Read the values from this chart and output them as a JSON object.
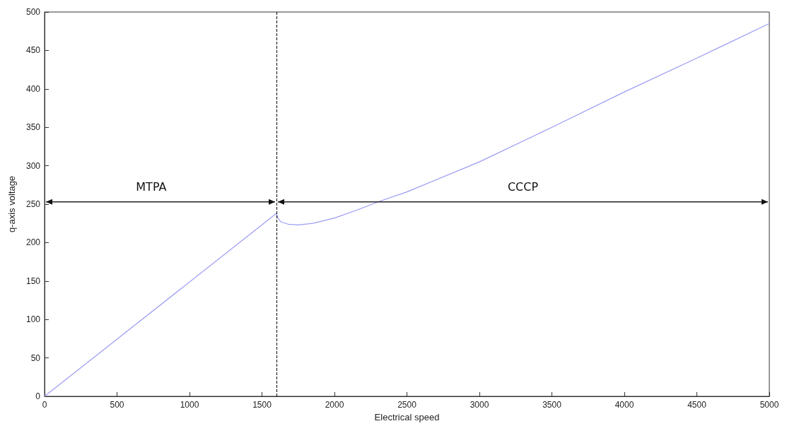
{
  "chart_data": {
    "type": "line",
    "xlabel": "Electrical speed",
    "ylabel": "q-axis voltage",
    "x": [
      0,
      1600,
      1610,
      1630,
      1680,
      1750,
      1850,
      2000,
      2150,
      2300,
      2500,
      3000,
      3500,
      4000,
      4500,
      5000
    ],
    "series": [
      {
        "color": "#9c9cf5",
        "values": [
          0,
          238,
          232,
          227,
          224,
          223,
          225,
          232,
          242,
          253,
          266,
          305,
          350,
          396,
          440,
          485
        ]
      }
    ],
    "xlim": [
      0,
      5000
    ],
    "xticks": [
      0,
      500,
      1000,
      1500,
      2000,
      2500,
      3000,
      3500,
      4000,
      4500,
      5000
    ],
    "ylim": [
      0,
      500
    ],
    "yticks": [
      0,
      50,
      100,
      150,
      200,
      250,
      300,
      350,
      400,
      450,
      500
    ],
    "grid": false,
    "marker": "none",
    "line_style": "solid",
    "ref_lines": [
      {
        "axis": "x",
        "value": 1600,
        "color": "#000000",
        "line_style": "dashed"
      }
    ],
    "annotations": [
      "MTPA",
      "CCCP"
    ]
  }
}
